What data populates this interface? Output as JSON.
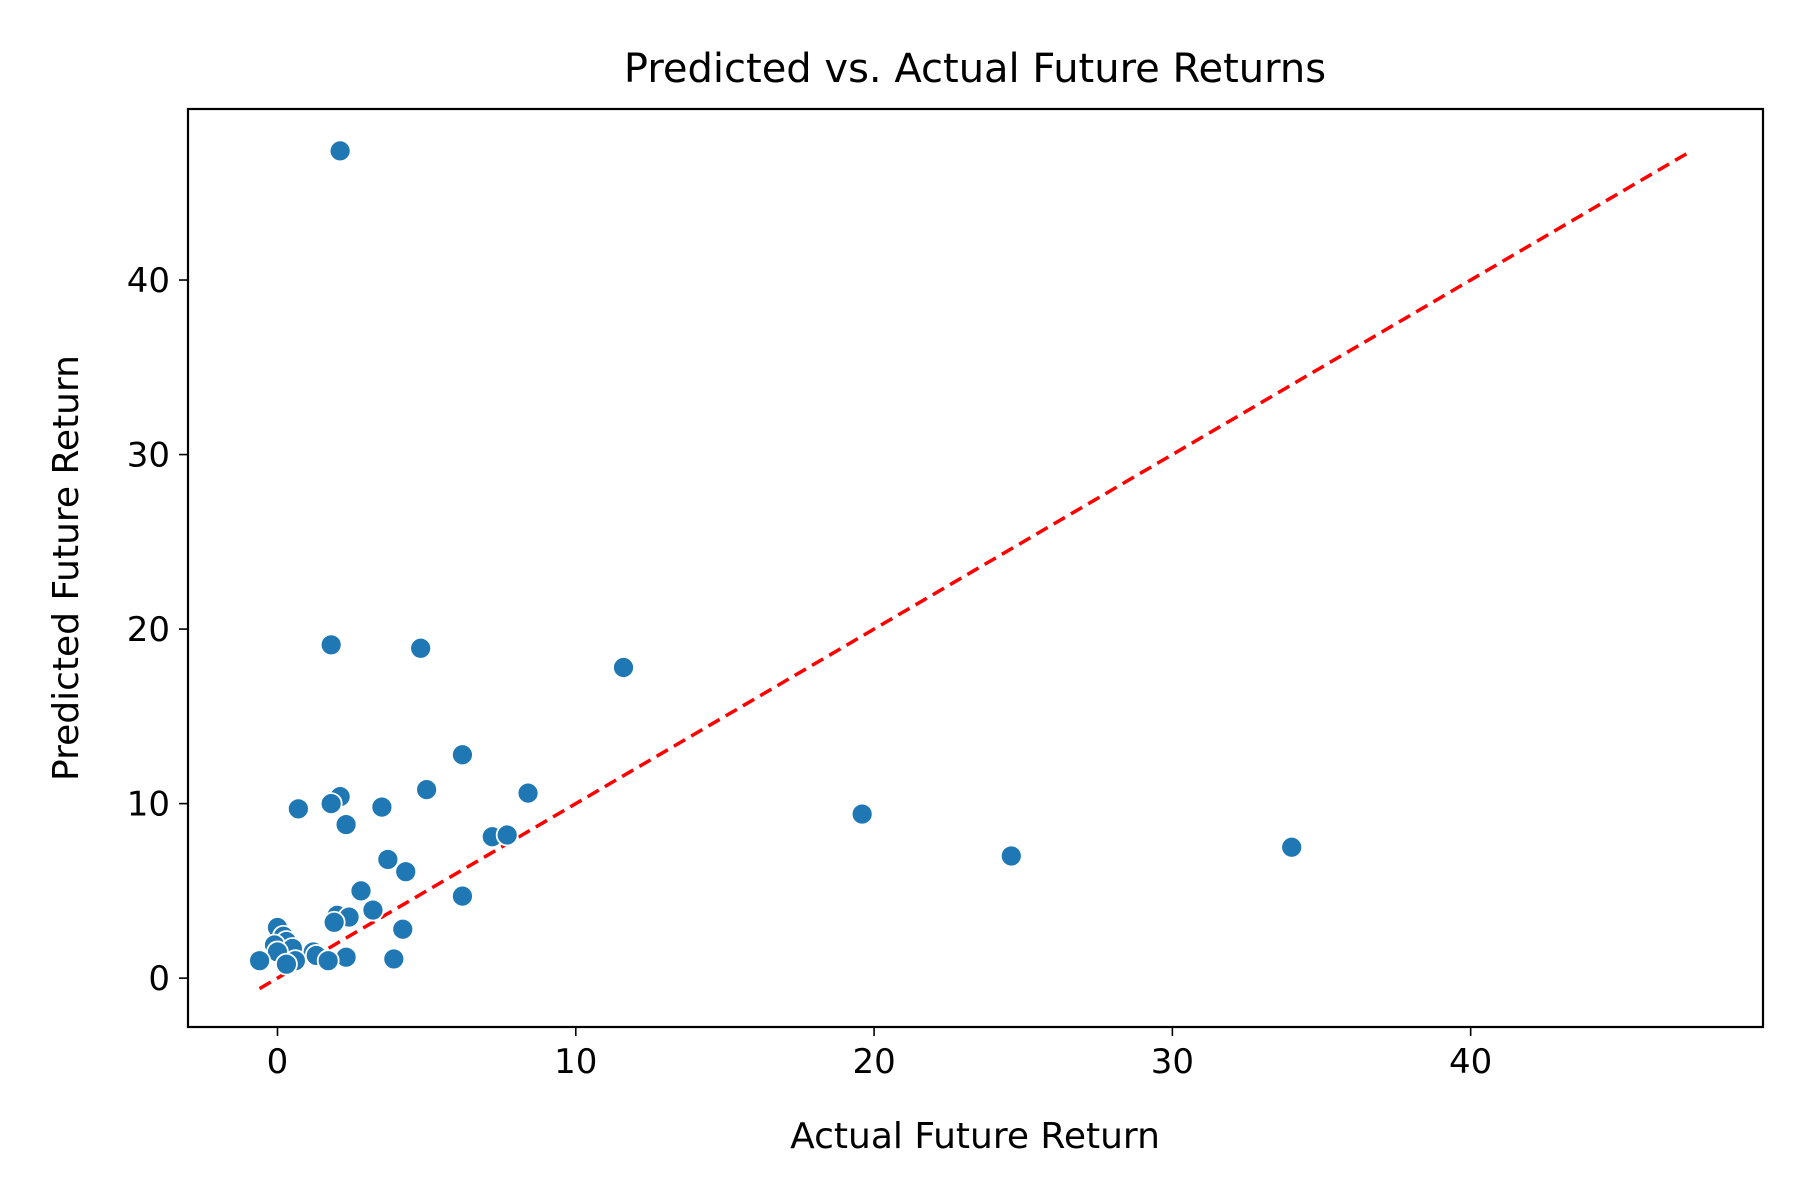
{
  "chart_data": {
    "type": "scatter",
    "title": "Predicted vs. Actual Future Returns",
    "xlabel": "Actual Future Return",
    "ylabel": "Predicted Future Return",
    "xlim": [
      -3,
      49.8
    ],
    "ylim": [
      -2.8,
      49.8
    ],
    "xticks": [
      0,
      10,
      20,
      30,
      40
    ],
    "yticks": [
      0,
      10,
      20,
      30,
      40
    ],
    "grid": false,
    "point_color": "#1f77b4",
    "reference_line": {
      "style": "dashed",
      "color": "#ff0000",
      "from": [
        -0.6,
        -0.6
      ],
      "to": [
        47.3,
        47.3
      ]
    },
    "points": [
      {
        "x": 2.1,
        "y": 47.4
      },
      {
        "x": 1.8,
        "y": 19.1
      },
      {
        "x": 4.8,
        "y": 18.9
      },
      {
        "x": 11.6,
        "y": 17.8
      },
      {
        "x": 6.2,
        "y": 12.8
      },
      {
        "x": 8.4,
        "y": 10.6
      },
      {
        "x": 5.0,
        "y": 10.8
      },
      {
        "x": 2.1,
        "y": 10.4
      },
      {
        "x": 1.8,
        "y": 10.0
      },
      {
        "x": 3.5,
        "y": 9.8
      },
      {
        "x": 0.7,
        "y": 9.7
      },
      {
        "x": 2.3,
        "y": 8.8
      },
      {
        "x": 19.6,
        "y": 9.4
      },
      {
        "x": 24.6,
        "y": 7.0
      },
      {
        "x": 34.0,
        "y": 7.5
      },
      {
        "x": 7.2,
        "y": 8.1
      },
      {
        "x": 7.7,
        "y": 8.2
      },
      {
        "x": 3.7,
        "y": 6.8
      },
      {
        "x": 4.3,
        "y": 6.1
      },
      {
        "x": 2.8,
        "y": 5.0
      },
      {
        "x": 6.2,
        "y": 4.7
      },
      {
        "x": 3.2,
        "y": 3.9
      },
      {
        "x": 2.0,
        "y": 3.6
      },
      {
        "x": 2.4,
        "y": 3.5
      },
      {
        "x": 1.9,
        "y": 3.2
      },
      {
        "x": 4.2,
        "y": 2.8
      },
      {
        "x": 0.0,
        "y": 2.9
      },
      {
        "x": 0.2,
        "y": 2.4
      },
      {
        "x": 0.3,
        "y": 2.1
      },
      {
        "x": -0.1,
        "y": 1.9
      },
      {
        "x": 0.5,
        "y": 1.7
      },
      {
        "x": 0.0,
        "y": 1.5
      },
      {
        "x": 1.2,
        "y": 1.5
      },
      {
        "x": 1.3,
        "y": 1.3
      },
      {
        "x": 2.3,
        "y": 1.2
      },
      {
        "x": 3.9,
        "y": 1.1
      },
      {
        "x": 1.7,
        "y": 1.0
      },
      {
        "x": 0.6,
        "y": 1.0
      },
      {
        "x": 0.3,
        "y": 0.8
      },
      {
        "x": -0.6,
        "y": 1.0
      }
    ]
  }
}
